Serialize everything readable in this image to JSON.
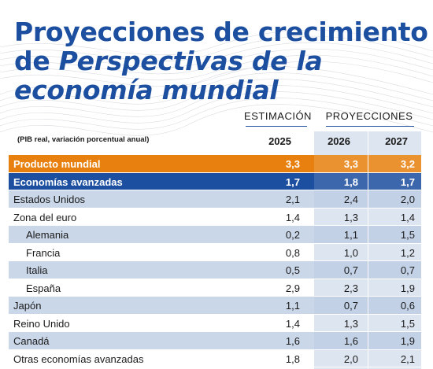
{
  "title": {
    "line1": "Proyecciones de crecimiento",
    "line2_prefix": "de ",
    "line2_italic": "Perspectivas de la",
    "line3": "economía mundial"
  },
  "headers": {
    "estimation": "ESTIMACIÓN",
    "projections": "PROYECCIONES",
    "note": "(PIB real, variación porcentual anual)",
    "years": [
      "2025",
      "2026",
      "2027"
    ]
  },
  "rows": [
    {
      "label": "Producto mundial",
      "style": "orange",
      "values": [
        "3,3",
        "3,3",
        "3,2"
      ]
    },
    {
      "label": "Economías avanzadas",
      "style": "blue",
      "values": [
        "1,7",
        "1,8",
        "1,7"
      ]
    },
    {
      "label": "Estados Unidos",
      "style": "light",
      "values": [
        "2,1",
        "2,4",
        "2,0"
      ]
    },
    {
      "label": "Zona del euro",
      "style": "white",
      "values": [
        "1,4",
        "1,3",
        "1,4"
      ]
    },
    {
      "label": "Alemania",
      "style": "light",
      "sub": true,
      "values": [
        "0,2",
        "1,1",
        "1,5"
      ]
    },
    {
      "label": "Francia",
      "style": "white",
      "sub": true,
      "values": [
        "0,8",
        "1,0",
        "1,2"
      ]
    },
    {
      "label": "Italia",
      "style": "light",
      "sub": true,
      "values": [
        "0,5",
        "0,7",
        "0,7"
      ]
    },
    {
      "label": "España",
      "style": "white",
      "sub": true,
      "values": [
        "2,9",
        "2,3",
        "1,9"
      ]
    },
    {
      "label": "Japón",
      "style": "light",
      "values": [
        "1,1",
        "0,7",
        "0,6"
      ]
    },
    {
      "label": "Reino Unido",
      "style": "white",
      "values": [
        "1,4",
        "1,3",
        "1,5"
      ]
    },
    {
      "label": "Canadá",
      "style": "light",
      "values": [
        "1,6",
        "1,6",
        "1,9"
      ]
    },
    {
      "label": "Otras economías avanzadas",
      "style": "white",
      "values": [
        "1,8",
        "2,0",
        "2,1"
      ]
    }
  ],
  "colors": {
    "title_blue": "#1c4fa0",
    "orange": "#e8800f",
    "light_row": "#cad7e8",
    "projection_shade": "#dde5f0"
  }
}
